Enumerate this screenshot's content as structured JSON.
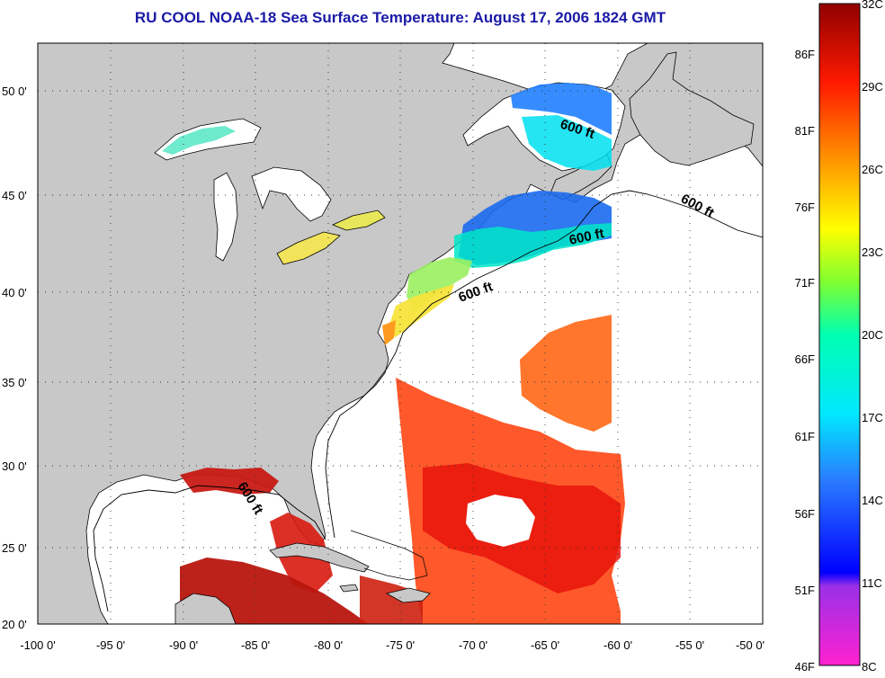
{
  "title": "RU COOL  NOAA-18  Sea Surface Temperature:  August 17, 2006 1824 GMT",
  "map": {
    "lon_range": [
      -100,
      -50
    ],
    "lat_range": [
      20,
      52
    ],
    "lon_ticks": [
      "-100 0'",
      "-95 0'",
      "-90 0'",
      "-85 0'",
      "-80 0'",
      "-75 0'",
      "-70 0'",
      "-65 0'",
      "-60 0'",
      "-55 0'",
      "-50 0'"
    ],
    "lat_ticks": [
      "20 0'",
      "25 0'",
      "30 0'",
      "35 0'",
      "40 0'",
      "45 0'",
      "50 0'"
    ],
    "grid": "dotted",
    "land_color": "#c8c8c8",
    "no_data_color": "#ffffff",
    "contour_label": "600 ft"
  },
  "colorbar": {
    "fahrenheit_labels": [
      "46F",
      "51F",
      "56F",
      "61F",
      "66F",
      "71F",
      "76F",
      "81F",
      "86F"
    ],
    "celsius_labels": [
      "8C",
      "11C",
      "14C",
      "17C",
      "20C",
      "23C",
      "26C",
      "29C",
      "32C"
    ],
    "colors": [
      "#ff22d0",
      "#8a2be2",
      "#0000ff",
      "#00c8ff",
      "#00ffc8",
      "#60ff40",
      "#ffff00",
      "#ff9900",
      "#ff2a00",
      "#900000"
    ]
  }
}
